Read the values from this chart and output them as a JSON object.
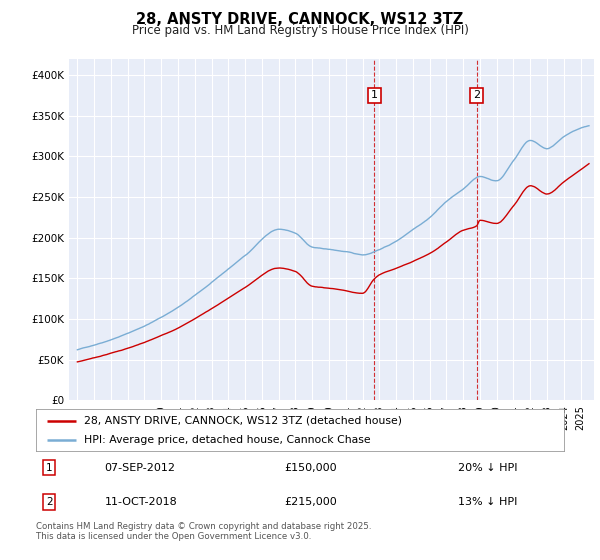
{
  "title": "28, ANSTY DRIVE, CANNOCK, WS12 3TZ",
  "subtitle": "Price paid vs. HM Land Registry's House Price Index (HPI)",
  "legend_line1": "28, ANSTY DRIVE, CANNOCK, WS12 3TZ (detached house)",
  "legend_line2": "HPI: Average price, detached house, Cannock Chase",
  "footnote": "Contains HM Land Registry data © Crown copyright and database right 2025.\nThis data is licensed under the Open Government Licence v3.0.",
  "annotation1": {
    "label": "1",
    "date": "07-SEP-2012",
    "price": "£150,000",
    "hpi": "20% ↓ HPI",
    "x_year": 2012.7
  },
  "annotation2": {
    "label": "2",
    "date": "11-OCT-2018",
    "price": "£215,000",
    "hpi": "13% ↓ HPI",
    "x_year": 2018.8
  },
  "ylim": [
    0,
    420000
  ],
  "xlim_start": 1994.5,
  "xlim_end": 2025.8,
  "background_color": "#ffffff",
  "plot_bg_color": "#e8edf8",
  "grid_color": "#ffffff",
  "red_line_color": "#cc0000",
  "blue_line_color": "#7aadd4",
  "annotation_box_color": "#cc0000",
  "vline_color": "#cc0000",
  "hpi_keypoints_x": [
    1995,
    1997,
    1999,
    2001,
    2003,
    2005,
    2007,
    2008,
    2009,
    2010,
    2011,
    2012,
    2013,
    2014,
    2015,
    2016,
    2017,
    2018,
    2019,
    2020,
    2021,
    2022,
    2023,
    2024,
    2025
  ],
  "hpi_keypoints_y": [
    62000,
    75000,
    92000,
    115000,
    145000,
    178000,
    210000,
    205000,
    188000,
    185000,
    182000,
    178000,
    185000,
    195000,
    210000,
    225000,
    245000,
    260000,
    275000,
    270000,
    295000,
    320000,
    310000,
    325000,
    335000
  ],
  "red_keypoints_x": [
    1995,
    1997,
    1999,
    2001,
    2003,
    2005,
    2007,
    2008,
    2009,
    2010,
    2011,
    2012,
    2012.7,
    2013,
    2014,
    2015,
    2016,
    2017,
    2018,
    2018.8,
    2019,
    2020,
    2021,
    2022,
    2023,
    2024,
    2025
  ],
  "red_keypoints_y": [
    46000,
    57000,
    70000,
    88000,
    112000,
    138000,
    162000,
    158000,
    140000,
    138000,
    135000,
    132000,
    150000,
    155000,
    163000,
    172000,
    182000,
    196000,
    210000,
    215000,
    222000,
    218000,
    240000,
    265000,
    255000,
    270000,
    285000
  ]
}
